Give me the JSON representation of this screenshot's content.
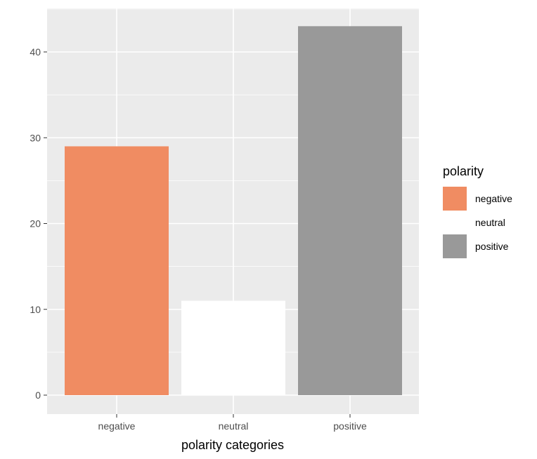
{
  "chart_data": {
    "type": "bar",
    "categories": [
      "negative",
      "neutral",
      "positive"
    ],
    "values": [
      29,
      11,
      43
    ],
    "xlabel": "polarity categories",
    "ylabel": "",
    "ylim": [
      0,
      45
    ],
    "yticks": [
      0,
      10,
      20,
      30,
      40
    ],
    "grid": true,
    "legend": {
      "title": "polarity",
      "placement": "right",
      "entries": [
        {
          "label": "negative",
          "color": "#F08C62"
        },
        {
          "label": "neutral",
          "color": "#FFFFFF"
        },
        {
          "label": "positive",
          "color": "#999999"
        }
      ]
    },
    "colors": {
      "panel_background": "#EBEBEB",
      "grid": "#FFFFFF"
    }
  }
}
